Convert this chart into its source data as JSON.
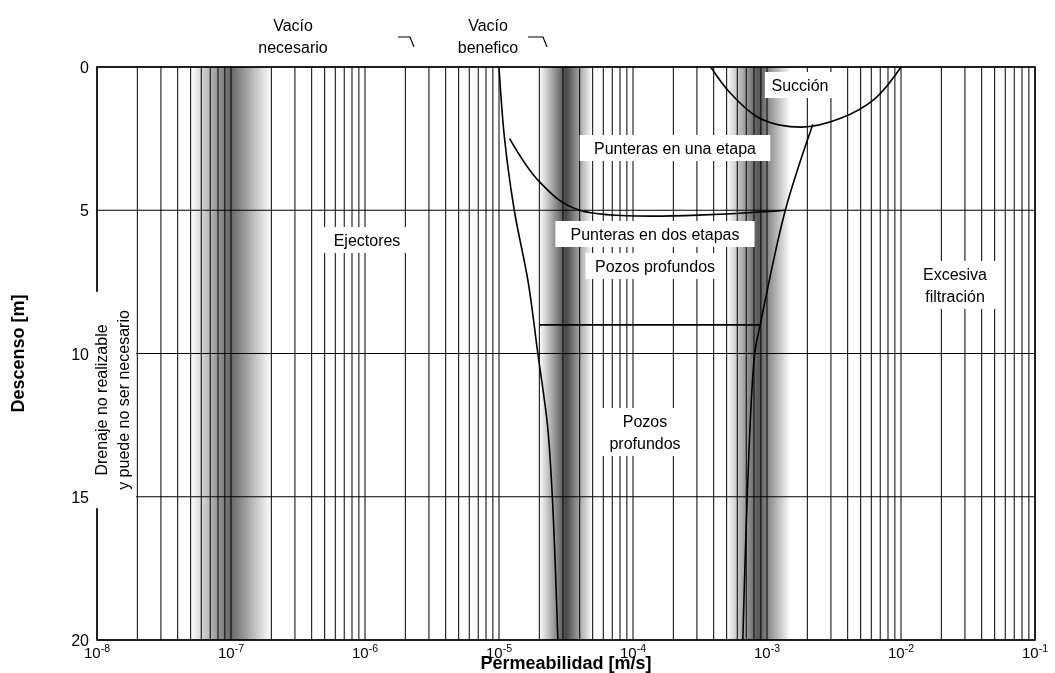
{
  "chart_data": {
    "type": "line",
    "xlabel": "Permeabilidad [m/s]",
    "ylabel": "Descenso [m]",
    "log": "x",
    "grid": true,
    "marker": "none",
    "line_style": "solid",
    "xlim": [
      1e-08,
      0.1
    ],
    "ylim": [
      20,
      0
    ],
    "xticks": [
      {
        "value": 1e-08,
        "label": "10$^{-8}$"
      },
      {
        "value": 1e-07,
        "label": "10$^{-7}$"
      },
      {
        "value": 1e-06,
        "label": "10$^{-6}$"
      },
      {
        "value": 1e-05,
        "label": "10$^{-5}$"
      },
      {
        "value": 0.0001,
        "label": "10$^{-4}$"
      },
      {
        "value": 0.001,
        "label": "10$^{-3}$"
      },
      {
        "value": 0.01,
        "label": "10$^{-2}$"
      },
      {
        "value": 0.1,
        "label": "10$^{-1}$"
      }
    ],
    "yticks": [
      0,
      5,
      10,
      15,
      20
    ],
    "series": [
      {
        "color": "#000000",
        "x": [
          1e-05,
          1.1e-05,
          1.3e-05,
          1.65e-05,
          1.95e-05,
          2.3e-05,
          2.5e-05,
          2.75e-05
        ],
        "values": [
          0,
          2.5,
          5,
          7.5,
          10,
          12.5,
          15,
          20
        ]
      },
      {
        "color": "#000000",
        "x": [
          0.00066,
          0.00081,
          0.00089,
          0.00137,
          0.0022
        ],
        "values": [
          20,
          10,
          9,
          5,
          2
        ]
      },
      {
        "color": "#000000",
        "x": [
          0.00038,
          0.00053,
          0.00089,
          0.0018,
          0.0035,
          0.0064,
          0.01
        ],
        "values": [
          0,
          0.9,
          1.8,
          2.1,
          1.8,
          1.1,
          0
        ]
      },
      {
        "color": "#000000",
        "x": [
          1.2e-05,
          2e-05,
          4e-05,
          0.00137
        ],
        "values": [
          2.5,
          4,
          5,
          5
        ]
      },
      {
        "color": "#000000",
        "x": [
          2e-05,
          0.00089
        ],
        "values": [
          9,
          9
        ]
      }
    ],
    "bands": [
      {
        "axis": "x",
        "from": 5e-08,
        "to": 2e-07,
        "color": "#555555"
      },
      {
        "axis": "x",
        "from": 2e-05,
        "to": 5e-05,
        "color": "#333333"
      },
      {
        "axis": "x",
        "from": 0.0005,
        "to": 0.0015,
        "color": "#444444"
      }
    ],
    "annotations": [
      "Vacío\nnecesario",
      "Vacío\nbenefico",
      "Drenaje no realizable\ny puede no ser necesario",
      "Succión",
      "Punteras en una etapa",
      "Ejectores",
      "Punteras en dos etapas",
      "Pozos profundos",
      "Excesiva\nfiltración",
      "Pozos\nprofundos"
    ]
  }
}
